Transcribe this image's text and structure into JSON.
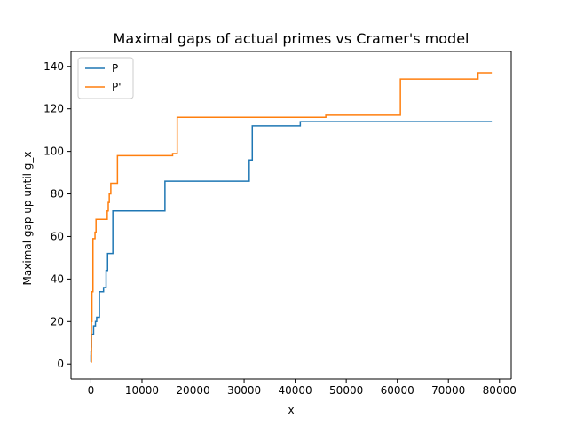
{
  "chart_data": {
    "type": "line",
    "title": "Maximal gaps of actual primes vs Cramer's model",
    "xlabel": "x",
    "ylabel": "Maximal gap up until g_x",
    "xlim": [
      -3900,
      82300
    ],
    "ylim": [
      -7,
      147
    ],
    "x_ticks": [
      0,
      10000,
      20000,
      30000,
      40000,
      50000,
      60000,
      70000,
      80000
    ],
    "y_ticks": [
      0,
      20,
      40,
      60,
      80,
      100,
      120,
      140
    ],
    "grid": false,
    "legend_position": "upper-left",
    "step": "post",
    "series": [
      {
        "name": "P",
        "color": "#1f77b4",
        "x": [
          2,
          7,
          23,
          89,
          113,
          523,
          887,
          1129,
          1669,
          2477,
          2971,
          3271,
          4297,
          14400,
          14500,
          15000,
          30800,
          31000,
          31400,
          31600,
          41000,
          78500
        ],
        "y": [
          1,
          4,
          6,
          8,
          14,
          18,
          20,
          22,
          34,
          36,
          44,
          52,
          72,
          72,
          86,
          86,
          86,
          96,
          96,
          112,
          114,
          114
        ]
      },
      {
        "name": "P'",
        "color": "#ff7f0e",
        "x": [
          2,
          100,
          200,
          300,
          400,
          600,
          800,
          1000,
          3000,
          3200,
          3400,
          3600,
          3900,
          4200,
          5200,
          15000,
          16000,
          16900,
          45000,
          46000,
          60600,
          75800,
          78500
        ],
        "y": [
          1,
          20,
          34,
          34,
          59,
          59,
          62,
          68,
          68,
          72,
          76,
          80,
          85,
          85,
          98,
          98,
          99,
          116,
          116,
          117,
          134,
          137,
          137
        ]
      }
    ]
  }
}
